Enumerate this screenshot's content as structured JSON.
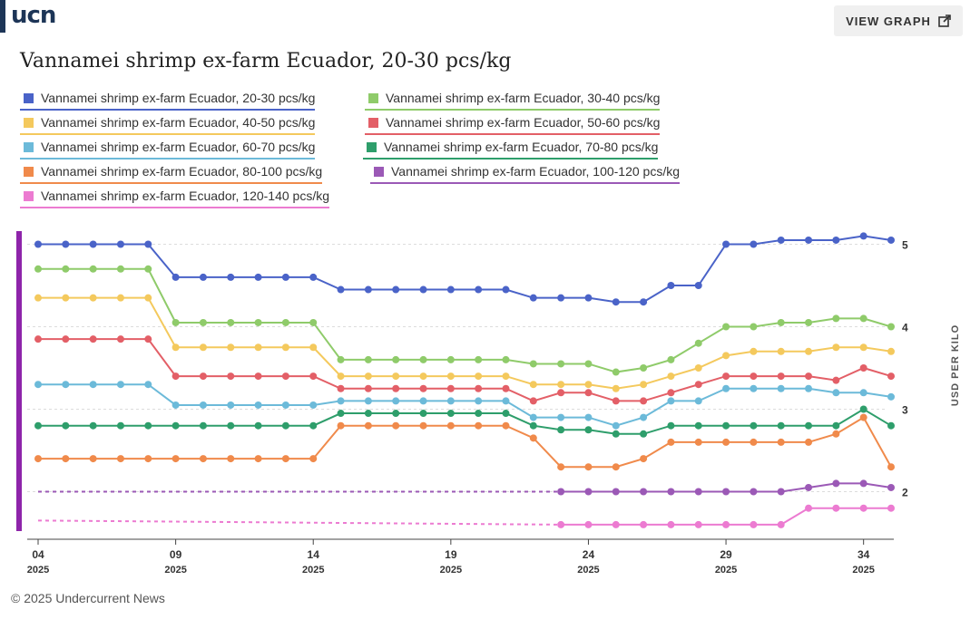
{
  "header": {
    "logo": "ucn",
    "view_graph_label": "VIEW GRAPH",
    "title": "Vannamei shrimp ex-farm Ecuador, 20-30 pcs/kg"
  },
  "footer": {
    "copyright": "© 2025 Undercurrent News"
  },
  "colors": {
    "s1": "#4a63c8",
    "s2": "#8fcb6a",
    "s3": "#f4c95d",
    "s4": "#e35f67",
    "s5": "#6cbad9",
    "s6": "#2e9e6b",
    "s7": "#f08a4b",
    "s8": "#9b59b6",
    "s9": "#ec7bd1",
    "accent_bar": "#8e24aa"
  },
  "chart_data": {
    "type": "line",
    "title": "Vannamei shrimp ex-farm Ecuador, 20-30 pcs/kg",
    "ylabel": "USD PER KILO",
    "xlabel": "",
    "ylim": [
      1.5,
      5.3
    ],
    "y_ticks": [
      2,
      3,
      4,
      5
    ],
    "x_tick_labels": [
      {
        "index": 0,
        "day": "04",
        "year": "2025"
      },
      {
        "index": 5,
        "day": "09",
        "year": "2025"
      },
      {
        "index": 10,
        "day": "14",
        "year": "2025"
      },
      {
        "index": 15,
        "day": "19",
        "year": "2025"
      },
      {
        "index": 20,
        "day": "24",
        "year": "2025"
      },
      {
        "index": 25,
        "day": "29",
        "year": "2025"
      },
      {
        "index": 30,
        "day": "34",
        "year": "2025"
      }
    ],
    "x_count": 32,
    "series": [
      {
        "name": "Vannamei shrimp ex-farm Ecuador, 20-30 pcs/kg",
        "color": "#4a63c8",
        "values": [
          5.0,
          5.0,
          5.0,
          5.0,
          5.0,
          4.6,
          4.6,
          4.6,
          4.6,
          4.6,
          4.6,
          4.45,
          4.45,
          4.45,
          4.45,
          4.45,
          4.45,
          4.45,
          4.35,
          4.35,
          4.35,
          4.3,
          4.3,
          4.5,
          4.5,
          5.0,
          5.0,
          5.05,
          5.05,
          5.05,
          5.1,
          5.05
        ]
      },
      {
        "name": "Vannamei shrimp ex-farm Ecuador, 30-40 pcs/kg",
        "color": "#8fcb6a",
        "values": [
          4.7,
          4.7,
          4.7,
          4.7,
          4.7,
          4.05,
          4.05,
          4.05,
          4.05,
          4.05,
          4.05,
          3.6,
          3.6,
          3.6,
          3.6,
          3.6,
          3.6,
          3.6,
          3.55,
          3.55,
          3.55,
          3.45,
          3.5,
          3.6,
          3.8,
          4.0,
          4.0,
          4.05,
          4.05,
          4.1,
          4.1,
          4.0
        ]
      },
      {
        "name": "Vannamei shrimp ex-farm Ecuador, 40-50 pcs/kg",
        "color": "#f4c95d",
        "values": [
          4.35,
          4.35,
          4.35,
          4.35,
          4.35,
          3.75,
          3.75,
          3.75,
          3.75,
          3.75,
          3.75,
          3.4,
          3.4,
          3.4,
          3.4,
          3.4,
          3.4,
          3.4,
          3.3,
          3.3,
          3.3,
          3.25,
          3.3,
          3.4,
          3.5,
          3.65,
          3.7,
          3.7,
          3.7,
          3.75,
          3.75,
          3.7
        ]
      },
      {
        "name": "Vannamei shrimp ex-farm Ecuador, 50-60 pcs/kg",
        "color": "#e35f67",
        "values": [
          3.85,
          3.85,
          3.85,
          3.85,
          3.85,
          3.4,
          3.4,
          3.4,
          3.4,
          3.4,
          3.4,
          3.25,
          3.25,
          3.25,
          3.25,
          3.25,
          3.25,
          3.25,
          3.1,
          3.2,
          3.2,
          3.1,
          3.1,
          3.2,
          3.3,
          3.4,
          3.4,
          3.4,
          3.4,
          3.35,
          3.5,
          3.4
        ]
      },
      {
        "name": "Vannamei shrimp ex-farm Ecuador, 60-70 pcs/kg",
        "color": "#6cbad9",
        "values": [
          3.3,
          3.3,
          3.3,
          3.3,
          3.3,
          3.05,
          3.05,
          3.05,
          3.05,
          3.05,
          3.05,
          3.1,
          3.1,
          3.1,
          3.1,
          3.1,
          3.1,
          3.1,
          2.9,
          2.9,
          2.9,
          2.8,
          2.9,
          3.1,
          3.1,
          3.25,
          3.25,
          3.25,
          3.25,
          3.2,
          3.2,
          3.15
        ]
      },
      {
        "name": "Vannamei shrimp ex-farm Ecuador, 70-80 pcs/kg",
        "color": "#2e9e6b",
        "values": [
          2.8,
          2.8,
          2.8,
          2.8,
          2.8,
          2.8,
          2.8,
          2.8,
          2.8,
          2.8,
          2.8,
          2.95,
          2.95,
          2.95,
          2.95,
          2.95,
          2.95,
          2.95,
          2.8,
          2.75,
          2.75,
          2.7,
          2.7,
          2.8,
          2.8,
          2.8,
          2.8,
          2.8,
          2.8,
          2.8,
          3.0,
          2.8
        ]
      },
      {
        "name": "Vannamei shrimp ex-farm Ecuador, 80-100 pcs/kg",
        "color": "#f08a4b",
        "values": [
          2.4,
          2.4,
          2.4,
          2.4,
          2.4,
          2.4,
          2.4,
          2.4,
          2.4,
          2.4,
          2.4,
          2.8,
          2.8,
          2.8,
          2.8,
          2.8,
          2.8,
          2.8,
          2.65,
          2.3,
          2.3,
          2.3,
          2.4,
          2.6,
          2.6,
          2.6,
          2.6,
          2.6,
          2.6,
          2.7,
          2.9,
          2.3
        ]
      },
      {
        "name": "Vannamei shrimp ex-farm Ecuador, 100-120 pcs/kg",
        "color": "#9b59b6",
        "dashed_start": 2.0,
        "values": [
          null,
          null,
          null,
          null,
          null,
          null,
          null,
          null,
          null,
          null,
          null,
          null,
          null,
          null,
          null,
          null,
          null,
          null,
          null,
          2.0,
          2.0,
          2.0,
          2.0,
          2.0,
          2.0,
          2.0,
          2.0,
          2.0,
          2.05,
          2.1,
          2.1,
          2.05
        ]
      },
      {
        "name": "Vannamei shrimp ex-farm Ecuador, 120-140 pcs/kg",
        "color": "#ec7bd1",
        "dashed_start": 1.65,
        "values": [
          null,
          null,
          null,
          null,
          null,
          null,
          null,
          null,
          null,
          null,
          null,
          null,
          null,
          null,
          null,
          null,
          null,
          null,
          null,
          1.6,
          1.6,
          1.6,
          1.6,
          1.6,
          1.6,
          1.6,
          1.6,
          1.6,
          1.8,
          1.8,
          1.8,
          1.8
        ]
      }
    ]
  }
}
